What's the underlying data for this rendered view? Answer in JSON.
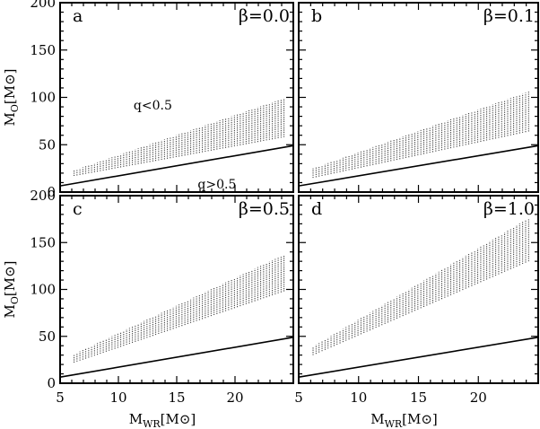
{
  "chart_data": [
    {
      "type": "area",
      "panel_letter": "a",
      "beta_label": "β=0.0",
      "xlim": [
        5,
        25
      ],
      "ylim": [
        0,
        200
      ],
      "x_ticks": [
        "5",
        "10",
        "15",
        "20"
      ],
      "y_ticks": [
        "0",
        "50",
        "100",
        "150",
        "200"
      ],
      "xlabel": "",
      "ylabel": "M_O[M⊙]",
      "band": {
        "x": [
          6.2,
          24.2
        ],
        "lower": [
          17,
          58
        ],
        "upper": [
          23,
          99
        ]
      },
      "boundary_line": {
        "x": [
          5,
          25
        ],
        "y": [
          6.5,
          49
        ]
      },
      "annotations": [
        "q<0.5",
        "q>0.5"
      ]
    },
    {
      "type": "area",
      "panel_letter": "b",
      "beta_label": "β=0.1",
      "xlim": [
        5,
        25
      ],
      "ylim": [
        0,
        200
      ],
      "x_ticks": [
        "5",
        "10",
        "15",
        "20"
      ],
      "y_ticks": [],
      "xlabel": "",
      "ylabel": "",
      "band": {
        "x": [
          6.2,
          24.2
        ],
        "lower": [
          15,
          64
        ],
        "upper": [
          25,
          106
        ]
      },
      "boundary_line": {
        "x": [
          5,
          25
        ],
        "y": [
          6.5,
          49
        ]
      },
      "annotations": []
    },
    {
      "type": "area",
      "panel_letter": "c",
      "beta_label": "β=0.5",
      "xlim": [
        5,
        25
      ],
      "ylim": [
        0,
        200
      ],
      "x_ticks": [
        "5",
        "10",
        "15",
        "20"
      ],
      "y_ticks": [
        "0",
        "50",
        "100",
        "150",
        "200"
      ],
      "xlabel": "M_WR[M⊙]",
      "ylabel": "M_O[M⊙]",
      "band": {
        "x": [
          6.2,
          24.2
        ],
        "lower": [
          22,
          98
        ],
        "upper": [
          31,
          137
        ]
      },
      "boundary_line": {
        "x": [
          5,
          25
        ],
        "y": [
          6.5,
          49
        ]
      },
      "annotations": []
    },
    {
      "type": "area",
      "panel_letter": "d",
      "beta_label": "β=1.0",
      "xlim": [
        5,
        25
      ],
      "ylim": [
        0,
        200
      ],
      "x_ticks": [
        "5",
        "10",
        "15",
        "20"
      ],
      "y_ticks": [],
      "xlabel": "M_WR[M⊙]",
      "ylabel": "",
      "band": {
        "x": [
          6.2,
          24.2
        ],
        "lower": [
          30,
          130
        ],
        "upper": [
          39,
          176
        ]
      },
      "boundary_line": {
        "x": [
          5,
          25
        ],
        "y": [
          6.5,
          49
        ]
      },
      "annotations": []
    }
  ]
}
